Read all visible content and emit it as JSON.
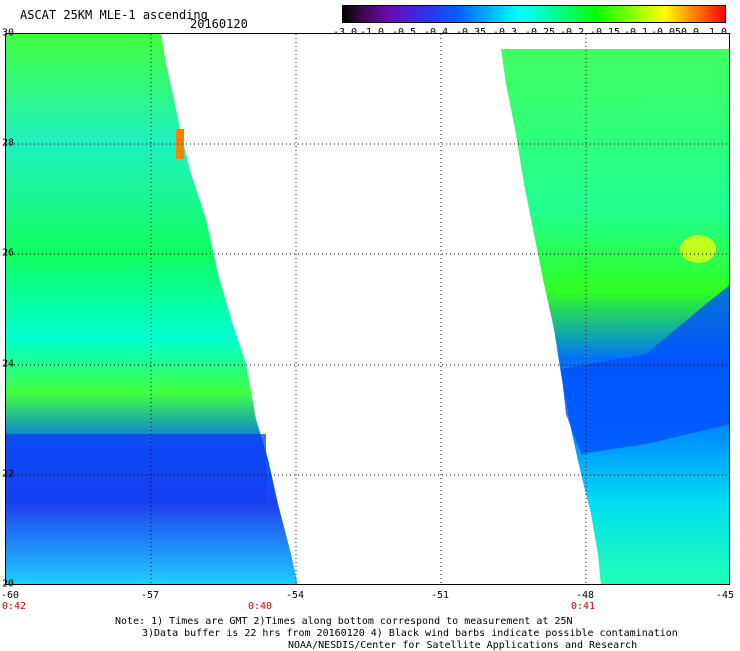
{
  "header": {
    "title": "ASCAT 25KM MLE-1 ascending",
    "date": "20160120"
  },
  "colorbar": {
    "labels": [
      "-3.0",
      "-1.0",
      "-0.5",
      "-0.4",
      "-0.35",
      "-0.3",
      "-0.25",
      "-0.2",
      "-0.15",
      "-0.1",
      "-0.05",
      "0.0",
      "1.0"
    ]
  },
  "axes": {
    "y_labels": [
      "30",
      "28",
      "26",
      "24",
      "22",
      "20"
    ],
    "x_labels": [
      "-60",
      "-57",
      "-54",
      "-51",
      "-48",
      "-45"
    ],
    "time_labels": [
      "0:42",
      "0:40",
      "0:41"
    ]
  },
  "map": {
    "lat_range": [
      20,
      30
    ],
    "lon_range": [
      -60,
      -45
    ],
    "grid": true,
    "swaths": [
      {
        "name": "left",
        "dominant": "green / cyan",
        "low_region": "blue band near 21-23N"
      },
      {
        "name": "right",
        "dominant": "green / cyan",
        "low_region": "blue band near 23-25N"
      }
    ]
  },
  "notes": {
    "line1": "Note: 1) Times are GMT 2)Times along bottom correspond to measurement at 25N",
    "line2": "3)Data buffer is 22 hrs from 20160120 4) Black wind barbs indicate possible contamination",
    "line3": "NOAA/NESDIS/Center for Satellite Applications and Research"
  }
}
